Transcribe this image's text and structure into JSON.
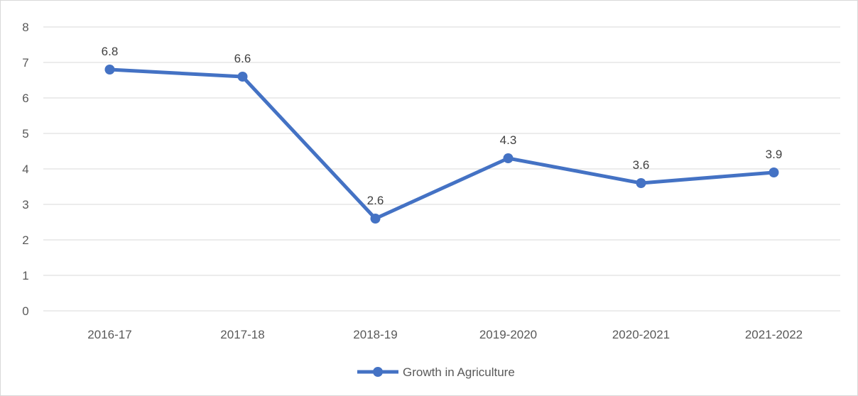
{
  "chart_data": {
    "type": "line",
    "categories": [
      "2016-17",
      "2017-18",
      "2018-19",
      "2019-2020",
      "2020-2021",
      "2021-2022"
    ],
    "series": [
      {
        "name": "Growth in Agriculture",
        "values": [
          6.8,
          6.6,
          2.6,
          4.3,
          3.6,
          3.9
        ],
        "data_labels": [
          "6.8",
          "6.6",
          "2.6",
          "4.3",
          "3.6",
          "3.9"
        ],
        "color": "#4472c4"
      }
    ],
    "y_ticks": [
      "0",
      "1",
      "2",
      "3",
      "4",
      "5",
      "6",
      "7",
      "8"
    ],
    "ylim": [
      0,
      8
    ],
    "grid": true,
    "legend_position": "bottom",
    "title": "",
    "xlabel": "",
    "ylabel": ""
  },
  "colors": {
    "series": "#4472c4",
    "gridline": "#d9d9d9",
    "tick_text": "#595959",
    "data_label_text": "#404040"
  }
}
